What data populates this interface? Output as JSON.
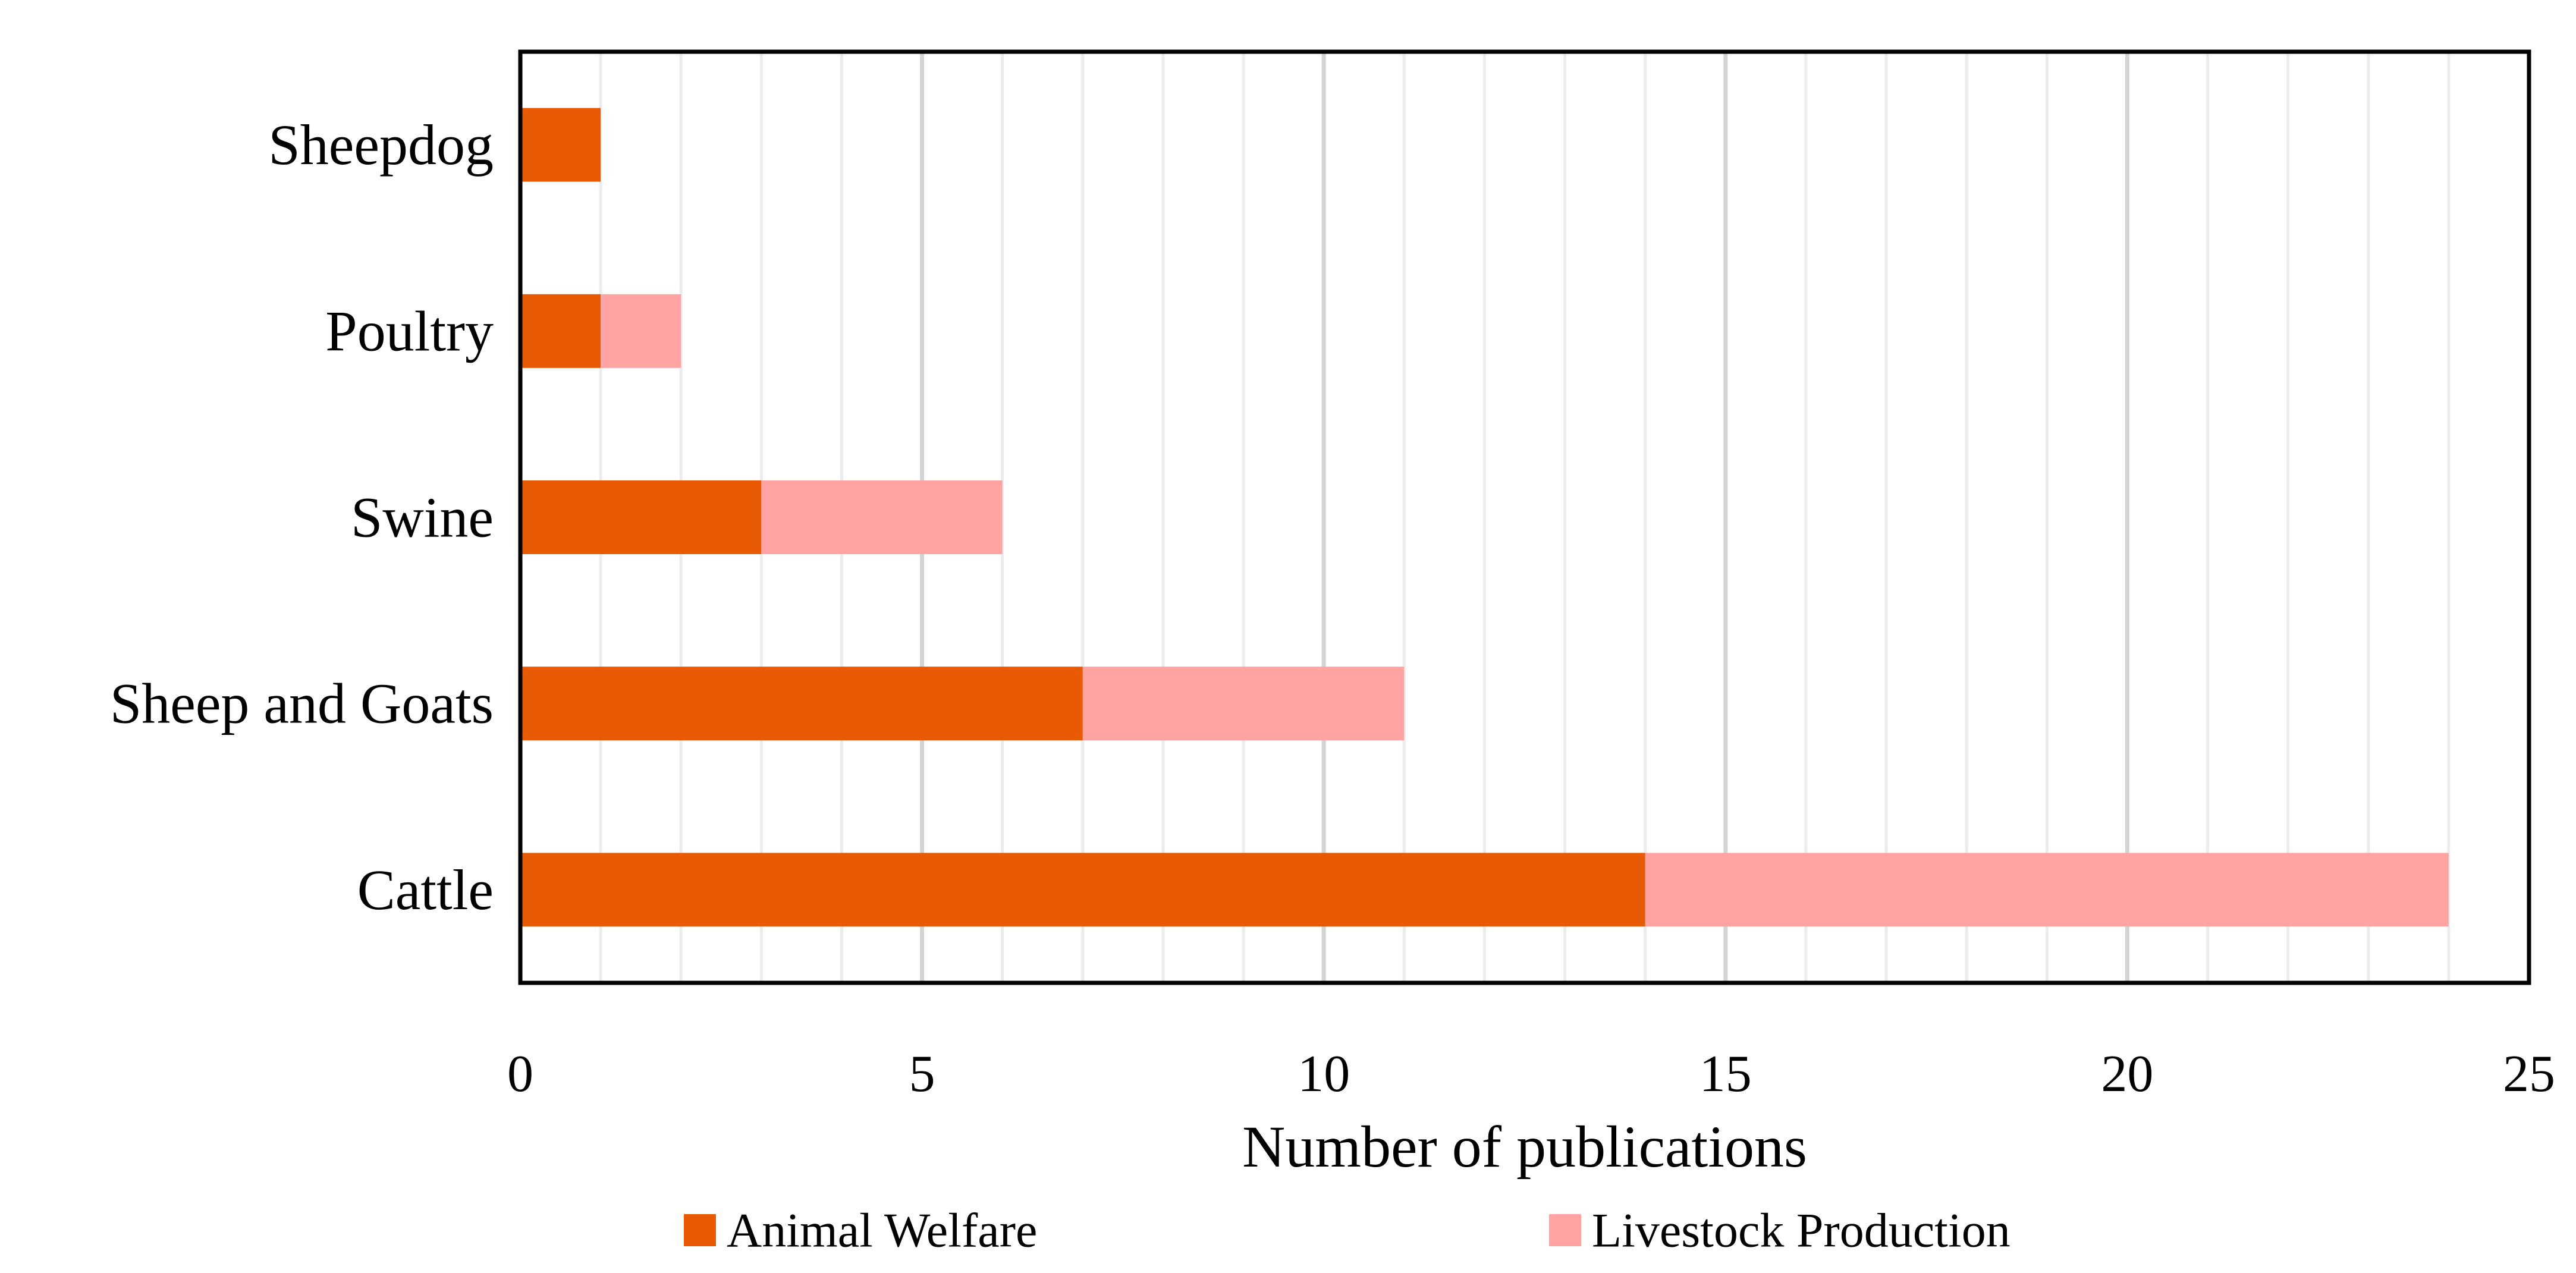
{
  "chart_data": {
    "type": "bar",
    "orientation": "horizontal",
    "stacked": true,
    "categories": [
      "Sheepdog",
      "Poultry",
      "Swine",
      "Sheep and Goats",
      "Cattle"
    ],
    "series": [
      {
        "name": "Animal Welfare",
        "color": "#E85A04",
        "values": [
          1,
          1,
          3,
          7,
          14
        ]
      },
      {
        "name": "Livestock Production",
        "color": "#FFA3A3",
        "values": [
          0,
          1,
          3,
          4,
          10
        ]
      }
    ],
    "title": "",
    "xlabel": "Number of publications",
    "ylabel": "",
    "xlim": [
      0,
      25
    ],
    "xticks": [
      0,
      5,
      10,
      15,
      20,
      25
    ],
    "tick_labels": [
      "0",
      "5",
      "10",
      "15",
      "20",
      "25"
    ],
    "grid": true,
    "legend_position": "bottom"
  }
}
